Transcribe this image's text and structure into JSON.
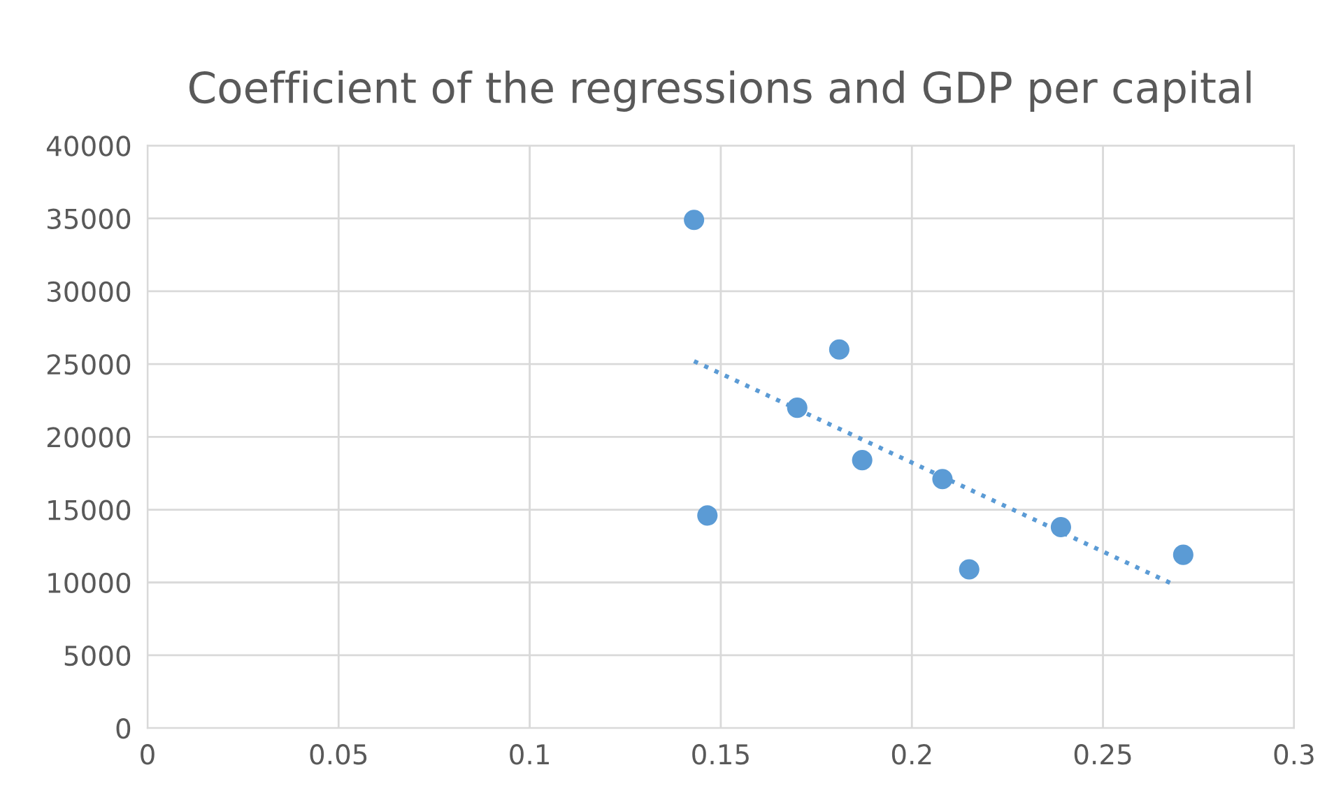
{
  "chart_data": {
    "type": "scatter",
    "title": "Coefficient of the regressions and GDP per capital",
    "series": [
      {
        "color": "#5b9bd5",
        "marker": "circle",
        "x": [
          0.143,
          0.1465,
          0.17,
          0.181,
          0.187,
          0.208,
          0.215,
          0.239,
          0.271
        ],
        "values": [
          34900,
          14600,
          22000,
          26000,
          18400,
          17100,
          10900,
          13800,
          11900
        ]
      },
      {
        "type": "line",
        "color": "#5b9bd5",
        "line_style": "dotted",
        "x": [
          0.143,
          0.269
        ],
        "values": [
          25200,
          9800
        ]
      }
    ],
    "xlim": [
      0,
      0.3
    ],
    "xticks": [
      {
        "value": 0,
        "label": "0"
      },
      0.05,
      0.1,
      0.15,
      0.2,
      0.25,
      0.3
    ],
    "ylim": [
      0,
      40000
    ],
    "yticks": [
      0,
      5000,
      10000,
      15000,
      20000,
      25000,
      30000,
      35000,
      40000
    ],
    "grid": true,
    "legend": false
  }
}
